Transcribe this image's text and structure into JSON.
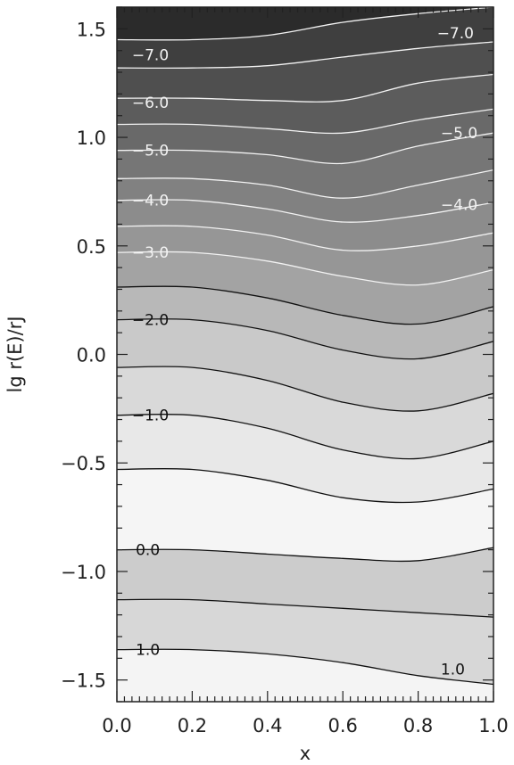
{
  "chart_data": {
    "type": "contour",
    "xlabel": "x",
    "ylabel": "lg r(E)/rJ",
    "xlim": [
      0.0,
      1.0
    ],
    "ylim": [
      -1.6,
      1.6
    ],
    "x_ticks": [
      "0.0",
      "0.2",
      "0.4",
      "0.6",
      "0.8",
      "1.0"
    ],
    "y_ticks": [
      "1.5",
      "1.0",
      "0.5",
      "0.0",
      "-0.5",
      "-1.0",
      "-1.5"
    ],
    "x_tick_values": [
      0.0,
      0.2,
      0.4,
      0.6,
      0.8,
      1.0
    ],
    "y_tick_values": [
      1.5,
      1.0,
      0.5,
      0.0,
      -0.5,
      -1.0,
      -1.5
    ],
    "grid": false,
    "levels": [
      {
        "value": -7.5,
        "y": [
          1.63,
          1.63,
          1.65,
          1.68,
          1.72,
          1.75
        ],
        "color": "white"
      },
      {
        "value": -7.0,
        "label": "-7.0",
        "y": [
          1.45,
          1.45,
          1.47,
          1.53,
          1.57,
          1.6
        ],
        "color": "white",
        "label_pos": [
          [
            0.04,
            1.38
          ],
          [
            0.85,
            1.48
          ]
        ]
      },
      {
        "value": -6.5,
        "y": [
          1.32,
          1.32,
          1.33,
          1.37,
          1.41,
          1.44
        ],
        "color": "white"
      },
      {
        "value": -6.0,
        "label": "-6.0",
        "y": [
          1.18,
          1.18,
          1.17,
          1.17,
          1.25,
          1.29
        ],
        "color": "white",
        "label_pos": [
          [
            0.04,
            1.16
          ]
        ]
      },
      {
        "value": -5.5,
        "y": [
          1.06,
          1.06,
          1.04,
          1.02,
          1.08,
          1.13
        ],
        "color": "white"
      },
      {
        "value": -5.0,
        "label": "-5.0",
        "y": [
          0.94,
          0.94,
          0.92,
          0.88,
          0.96,
          1.02
        ],
        "color": "white",
        "label_pos": [
          [
            0.04,
            0.94
          ],
          [
            0.86,
            1.02
          ]
        ]
      },
      {
        "value": -4.5,
        "y": [
          0.81,
          0.81,
          0.78,
          0.72,
          0.78,
          0.85
        ],
        "color": "white"
      },
      {
        "value": -4.0,
        "label": "-4.0",
        "y": [
          0.71,
          0.71,
          0.67,
          0.61,
          0.64,
          0.7
        ],
        "color": "white",
        "label_pos": [
          [
            0.04,
            0.71
          ],
          [
            0.86,
            0.69
          ]
        ]
      },
      {
        "value": -3.5,
        "y": [
          0.59,
          0.59,
          0.55,
          0.48,
          0.5,
          0.56
        ],
        "color": "white"
      },
      {
        "value": -3.0,
        "label": "-3.0",
        "y": [
          0.47,
          0.47,
          0.43,
          0.36,
          0.32,
          0.39
        ],
        "color": "white",
        "label_pos": [
          [
            0.04,
            0.47
          ]
        ]
      },
      {
        "value": -2.5,
        "y": [
          0.31,
          0.31,
          0.26,
          0.18,
          0.14,
          0.22
        ],
        "color": "black"
      },
      {
        "value": -2.0,
        "label": "-2.0",
        "y": [
          0.16,
          0.16,
          0.11,
          0.02,
          -0.02,
          0.06
        ],
        "color": "black",
        "label_pos": [
          [
            0.04,
            0.16
          ]
        ]
      },
      {
        "value": -1.5,
        "y": [
          -0.06,
          -0.06,
          -0.12,
          -0.22,
          -0.26,
          -0.18
        ],
        "color": "black"
      },
      {
        "value": -1.0,
        "label": "-1.0",
        "y": [
          -0.28,
          -0.28,
          -0.34,
          -0.44,
          -0.48,
          -0.4
        ],
        "color": "black",
        "label_pos": [
          [
            0.04,
            -0.28
          ]
        ]
      },
      {
        "value": -0.5,
        "y": [
          -0.53,
          -0.53,
          -0.58,
          -0.66,
          -0.68,
          -0.62
        ],
        "color": "black"
      },
      {
        "value": 0.0,
        "label": "0.0",
        "y": [
          -0.9,
          -0.9,
          -0.92,
          -0.94,
          -0.95,
          -0.89
        ],
        "color": "black",
        "label_pos": [
          [
            0.05,
            -0.9
          ]
        ]
      },
      {
        "value": 0.5,
        "y": [
          -1.13,
          -1.13,
          -1.15,
          -1.17,
          -1.19,
          -1.21
        ],
        "color": "black"
      },
      {
        "value": 1.0,
        "label": "1.0",
        "y": [
          -1.36,
          -1.36,
          -1.38,
          -1.42,
          -1.48,
          -1.52
        ],
        "color": "black",
        "label_pos": [
          [
            0.05,
            -1.36
          ],
          [
            0.86,
            -1.45
          ]
        ]
      }
    ],
    "level_x": [
      0.0,
      0.2,
      0.4,
      0.6,
      0.8,
      1.0
    ],
    "band_fills": [
      "#151515",
      "#2b2b2b",
      "#3f3f3f",
      "#4f4f4f",
      "#5c5c5c",
      "#696969",
      "#767676",
      "#818181",
      "#8c8c8c",
      "#969696",
      "#a3a3a3",
      "#b8b8b8",
      "#c9c9c9",
      "#d9d9d9",
      "#e8e8e8",
      "#f5f5f5",
      "#cccccc",
      "#d7d7d7",
      "#e9e9e9",
      "#f4f4f4"
    ]
  }
}
